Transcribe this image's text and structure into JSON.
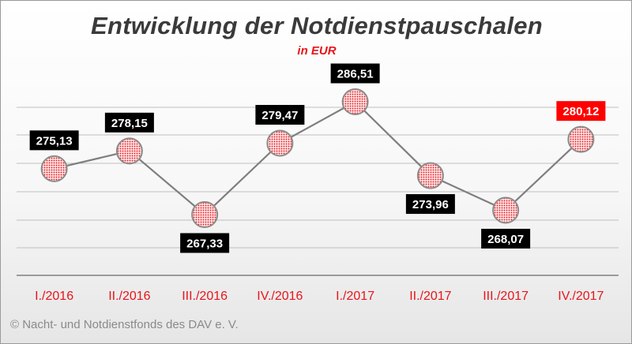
{
  "title": "Entwicklung der Notdienstpauschalen",
  "subtitle": "in EUR",
  "footer": "© Nacht- und Notdienstfonds des DAV e. V.",
  "colors": {
    "accent": "#e8141b",
    "line": "#7f7f7f",
    "label_bg": "#000000",
    "highlight_label_bg": "#ff0000",
    "marker_fill": "#f7c4c4",
    "marker_stroke": "#8c8c8c",
    "grid": "#bfbfbf"
  },
  "chart_data": {
    "type": "line",
    "title": "Entwicklung der Notdienstpauschalen",
    "subtitle": "in EUR",
    "xlabel": "",
    "ylabel": "",
    "categories": [
      "I./2016",
      "II./2016",
      "III./2016",
      "IV./2016",
      "I./2017",
      "II./2017",
      "III./2017",
      "IV./2017"
    ],
    "series": [
      {
        "values": [
          275.13,
          278.15,
          267.33,
          279.47,
          286.51,
          273.96,
          268.07,
          280.12
        ],
        "labels": [
          "275,13",
          "278,15",
          "267,33",
          "279,47",
          "286,51",
          "273,96",
          "268,07",
          "280,12"
        ]
      }
    ],
    "highlight_index": 7,
    "label_position": [
      "above",
      "above",
      "below",
      "above",
      "above",
      "below",
      "below",
      "above"
    ],
    "ylim": [
      257,
      290
    ],
    "grid": true,
    "legend": "none"
  }
}
